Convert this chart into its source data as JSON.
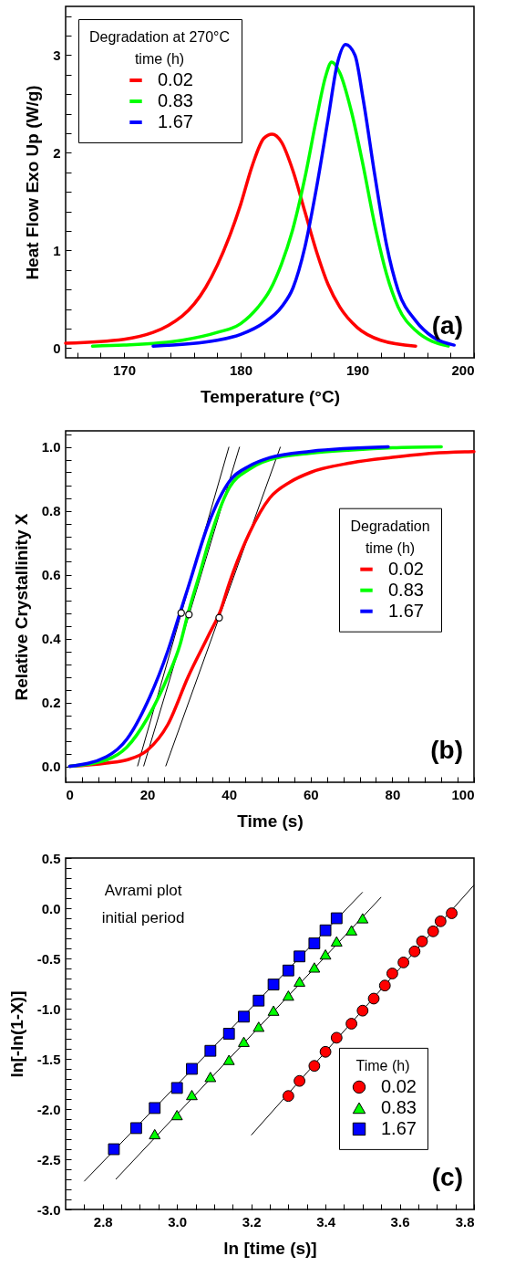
{
  "chart_data": [
    {
      "type": "line",
      "xlabel": "Temperature (°C)",
      "ylabel": "Heat Flow Exo Up (W/g)",
      "legend_title": "Degradation at 270°C\ntime (h)",
      "legend": "top left",
      "annotations": [
        "(a)"
      ],
      "xlim": [
        165,
        200
      ],
      "ylim": [
        -0.1,
        3.5
      ],
      "xticks": [
        {
          "value": 166,
          "label": null
        },
        {
          "value": 168,
          "label": null
        },
        170,
        {
          "value": 172,
          "label": null
        },
        {
          "value": 174,
          "label": null
        },
        {
          "value": 176,
          "label": null
        },
        {
          "value": 178,
          "label": null
        },
        180,
        {
          "value": 182,
          "label": null
        },
        {
          "value": 184,
          "label": null
        },
        {
          "value": 186,
          "label": null
        },
        {
          "value": 188,
          "label": null
        },
        190,
        {
          "value": 192,
          "label": null
        },
        {
          "value": 194,
          "label": null
        },
        {
          "value": 196,
          "label": null
        },
        {
          "value": 198,
          "label": null
        },
        200
      ],
      "yticks": [
        0,
        {
          "value": 0.2,
          "label": null
        },
        {
          "value": 0.4,
          "label": null
        },
        {
          "value": 0.6,
          "label": null
        },
        {
          "value": 0.8,
          "label": null
        },
        1,
        {
          "value": 1.2,
          "label": null
        },
        {
          "value": 1.4,
          "label": null
        },
        {
          "value": 1.6,
          "label": null
        },
        {
          "value": 1.8,
          "label": null
        },
        2,
        {
          "value": 2.2,
          "label": null
        },
        {
          "value": 2.4,
          "label": null
        },
        {
          "value": 2.6,
          "label": null
        },
        {
          "value": 2.8,
          "label": null
        },
        3,
        {
          "value": 3.2,
          "label": null
        },
        {
          "value": 3.4,
          "label": null
        }
      ],
      "series": [
        {
          "name": "0.02",
          "color": "#ff0000",
          "x": [
            165,
            170,
            175,
            177,
            179,
            180,
            181,
            182,
            182.7,
            183.5,
            184.5,
            185.5,
            186.5,
            187.5,
            188.5,
            190,
            192,
            195
          ],
          "values": [
            0.05,
            0.09,
            0.33,
            0.62,
            1.13,
            1.47,
            1.87,
            2.15,
            2.19,
            2.11,
            1.81,
            1.4,
            0.99,
            0.65,
            0.42,
            0.21,
            0.08,
            0.02
          ]
        },
        {
          "name": "0.83",
          "color": "#00ff00",
          "x": [
            167.3,
            170,
            175,
            178,
            180,
            181.5,
            182.5,
            183.5,
            184.5,
            185.5,
            186.5,
            187.3,
            187.8,
            188.5,
            189.5,
            190.5,
            191.5,
            192.5,
            193.5,
            195,
            197.8
          ],
          "values": [
            0.02,
            0.03,
            0.08,
            0.16,
            0.25,
            0.42,
            0.59,
            0.86,
            1.23,
            1.74,
            2.35,
            2.79,
            2.93,
            2.82,
            2.42,
            1.87,
            1.26,
            0.76,
            0.42,
            0.18,
            0.02
          ]
        },
        {
          "name": "1.67",
          "color": "#0000ff",
          "x": [
            172.5,
            178,
            180,
            182,
            183.5,
            184.5,
            185.5,
            186.5,
            187.5,
            188.3,
            189,
            189.8,
            190.5,
            191.5,
            192.5,
            193.5,
            195,
            196.5,
            198.3
          ],
          "values": [
            0.02,
            0.08,
            0.14,
            0.26,
            0.42,
            0.62,
            1.03,
            1.64,
            2.35,
            2.92,
            3.11,
            3.0,
            2.55,
            1.77,
            1.06,
            0.59,
            0.28,
            0.11,
            0.03
          ]
        }
      ]
    },
    {
      "type": "line",
      "xlabel": "Time (s)",
      "ylabel": "Relative Crystallinity X",
      "legend_title": "Degradation\ntime (h)",
      "legend": "right",
      "annotations": [
        "(b)"
      ],
      "xlim": [
        0,
        100
      ],
      "ylim": [
        -0.05,
        1.05
      ],
      "xticks": [
        0,
        {
          "value": 4,
          "label": null
        },
        {
          "value": 8,
          "label": null
        },
        {
          "value": 12,
          "label": null
        },
        {
          "value": 16,
          "label": null
        },
        20,
        {
          "value": 24,
          "label": null
        },
        {
          "value": 28,
          "label": null
        },
        {
          "value": 32,
          "label": null
        },
        {
          "value": 36,
          "label": null
        },
        40,
        {
          "value": 44,
          "label": null
        },
        {
          "value": 48,
          "label": null
        },
        {
          "value": 52,
          "label": null
        },
        {
          "value": 56,
          "label": null
        },
        60,
        {
          "value": 64,
          "label": null
        },
        {
          "value": 68,
          "label": null
        },
        {
          "value": 72,
          "label": null
        },
        {
          "value": 76,
          "label": null
        },
        80,
        {
          "value": 84,
          "label": null
        },
        {
          "value": 88,
          "label": null
        },
        {
          "value": 92,
          "label": null
        },
        {
          "value": 96,
          "label": null
        },
        100
      ],
      "yticks": [
        {
          "value": 0,
          "label": "0.0"
        },
        {
          "value": 0.04,
          "label": null
        },
        {
          "value": 0.08,
          "label": null
        },
        {
          "value": 0.12,
          "label": null
        },
        {
          "value": 0.16,
          "label": null
        },
        0.2,
        {
          "value": 0.24,
          "label": null
        },
        {
          "value": 0.28,
          "label": null
        },
        {
          "value": 0.32,
          "label": null
        },
        {
          "value": 0.36,
          "label": null
        },
        0.4,
        {
          "value": 0.44,
          "label": null
        },
        {
          "value": 0.48,
          "label": null
        },
        {
          "value": 0.52,
          "label": null
        },
        {
          "value": 0.56,
          "label": null
        },
        0.6,
        {
          "value": 0.64,
          "label": null
        },
        {
          "value": 0.68,
          "label": null
        },
        {
          "value": 0.72,
          "label": null
        },
        {
          "value": 0.76,
          "label": null
        },
        0.8,
        {
          "value": 0.84,
          "label": null
        },
        {
          "value": 0.88,
          "label": null
        },
        {
          "value": 0.92,
          "label": null
        },
        {
          "value": 0.96,
          "label": null
        },
        {
          "value": 1,
          "label": "1.0"
        },
        {
          "value": 1.04,
          "label": null
        }
      ],
      "series": [
        {
          "name": "0.02",
          "color": "#ff0000",
          "x": [
            1,
            10,
            15,
            20,
            25,
            30,
            35,
            38,
            40,
            45,
            50,
            55,
            60,
            70,
            80,
            90,
            100
          ],
          "values": [
            0,
            0.01,
            0.02,
            0.05,
            0.13,
            0.28,
            0.41,
            0.49,
            0.57,
            0.73,
            0.84,
            0.89,
            0.92,
            0.95,
            0.967,
            0.98,
            0.985
          ]
        },
        {
          "name": "0.83",
          "color": "#00ff00",
          "x": [
            1,
            10,
            15,
            20,
            25,
            28,
            30,
            33,
            35,
            40,
            45,
            50,
            60,
            70,
            80,
            92
          ],
          "values": [
            0,
            0.02,
            0.06,
            0.15,
            0.28,
            0.38,
            0.48,
            0.61,
            0.7,
            0.87,
            0.93,
            0.96,
            0.98,
            0.99,
            0.997,
            1.0
          ]
        },
        {
          "name": "1.67",
          "color": "#0000ff",
          "x": [
            1,
            10,
            15,
            20,
            25,
            28,
            30,
            35,
            40,
            45,
            50,
            60,
            79
          ],
          "values": [
            0,
            0.03,
            0.085,
            0.2,
            0.36,
            0.48,
            0.56,
            0.76,
            0.89,
            0.94,
            0.966,
            0.986,
            1.0
          ]
        },
        {
          "type": "line",
          "color": "#000000",
          "x": [
            17.6,
            40
          ],
          "values": [
            0,
            1.0
          ]
        },
        {
          "type": "line",
          "color": "#000000",
          "x": [
            19.1,
            42.6
          ],
          "values": [
            0,
            1.0
          ]
        },
        {
          "type": "line",
          "color": "#000000",
          "x": [
            24.5,
            52.6
          ],
          "values": [
            0,
            1.0
          ]
        },
        {
          "type": "scatter",
          "marker": "circle",
          "color": "#ffffff",
          "x": [
            28.3,
            30.2,
            37.6
          ],
          "values": [
            0.48,
            0.475,
            0.465
          ]
        }
      ]
    },
    {
      "type": "scatter",
      "xlabel": "ln [time (s)]",
      "ylabel": "ln[-ln(1-X)]",
      "legend_title": "Time (h)",
      "legend": "bottom right",
      "annotations": [
        "Avrami plot\ninitial period",
        "(c)"
      ],
      "xlim": [
        2.7,
        3.8
      ],
      "ylim": [
        -3.0,
        0.5
      ],
      "xticks": [
        {
          "value": 2.75,
          "label": null
        },
        2.8,
        {
          "value": 2.85,
          "label": null
        },
        {
          "value": 2.9,
          "label": null
        },
        {
          "value": 2.95,
          "label": null
        },
        {
          "value": 3,
          "label": "3.0"
        },
        {
          "value": 3.05,
          "label": null
        },
        {
          "value": 3.1,
          "label": null
        },
        {
          "value": 3.15,
          "label": null
        },
        3.2,
        {
          "value": 3.25,
          "label": null
        },
        {
          "value": 3.3,
          "label": null
        },
        {
          "value": 3.35,
          "label": null
        },
        3.4,
        {
          "value": 3.45,
          "label": null
        },
        {
          "value": 3.5,
          "label": null
        },
        {
          "value": 3.55,
          "label": null
        },
        3.6,
        {
          "value": 3.65,
          "label": null
        },
        {
          "value": 3.7,
          "label": null
        },
        {
          "value": 3.75,
          "label": null
        },
        3.8
      ],
      "yticks": [
        {
          "value": -3,
          "label": "-3.0"
        },
        {
          "value": -2.9,
          "label": null
        },
        {
          "value": -2.8,
          "label": null
        },
        {
          "value": -2.7,
          "label": null
        },
        {
          "value": -2.6,
          "label": null
        },
        -2.5,
        {
          "value": -2.4,
          "label": null
        },
        {
          "value": -2.3,
          "label": null
        },
        {
          "value": -2.2,
          "label": null
        },
        {
          "value": -2.1,
          "label": null
        },
        {
          "value": -2,
          "label": "-2.0"
        },
        {
          "value": -1.9,
          "label": null
        },
        {
          "value": -1.8,
          "label": null
        },
        {
          "value": -1.7,
          "label": null
        },
        {
          "value": -1.6,
          "label": null
        },
        -1.5,
        {
          "value": -1.4,
          "label": null
        },
        {
          "value": -1.3,
          "label": null
        },
        {
          "value": -1.2,
          "label": null
        },
        {
          "value": -1.1,
          "label": null
        },
        {
          "value": -1,
          "label": "-1.0"
        },
        {
          "value": -0.9,
          "label": null
        },
        {
          "value": -0.8,
          "label": null
        },
        {
          "value": -0.7,
          "label": null
        },
        {
          "value": -0.6,
          "label": null
        },
        -0.5,
        {
          "value": -0.4,
          "label": null
        },
        {
          "value": -0.3,
          "label": null
        },
        {
          "value": -0.2,
          "label": null
        },
        {
          "value": -0.1,
          "label": null
        },
        {
          "value": 0,
          "label": "0.0"
        },
        {
          "value": 0.1,
          "label": null
        },
        {
          "value": 0.2,
          "label": null
        },
        {
          "value": 0.3,
          "label": null
        },
        {
          "value": 0.4,
          "label": null
        },
        0.5
      ],
      "series": [
        {
          "name": "0.02",
          "color": "#ff0000",
          "marker": "circle",
          "x": [
            3.3,
            3.33,
            3.37,
            3.4,
            3.43,
            3.47,
            3.5,
            3.53,
            3.56,
            3.58,
            3.61,
            3.64,
            3.66,
            3.69,
            3.71,
            3.74
          ],
          "values": [
            -1.87,
            -1.72,
            -1.57,
            -1.43,
            -1.29,
            -1.15,
            -1.02,
            -0.9,
            -0.77,
            -0.65,
            -0.54,
            -0.43,
            -0.33,
            -0.23,
            -0.13,
            -0.05
          ]
        },
        {
          "name": "0.83",
          "color": "#00ff00",
          "marker": "triangle",
          "x": [
            2.94,
            3.0,
            3.04,
            3.09,
            3.14,
            3.18,
            3.22,
            3.26,
            3.3,
            3.33,
            3.37,
            3.4,
            3.43,
            3.47,
            3.5
          ],
          "values": [
            -2.25,
            -2.06,
            -1.86,
            -1.68,
            -1.51,
            -1.33,
            -1.18,
            -1.02,
            -0.87,
            -0.73,
            -0.59,
            -0.46,
            -0.33,
            -0.22,
            -0.1
          ]
        },
        {
          "name": "1.67",
          "color": "#0000ff",
          "marker": "square",
          "x": [
            2.83,
            2.89,
            2.94,
            3.0,
            3.04,
            3.09,
            3.14,
            3.18,
            3.22,
            3.26,
            3.3,
            3.33,
            3.37,
            3.4,
            3.43
          ],
          "values": [
            -2.4,
            -2.19,
            -1.99,
            -1.79,
            -1.6,
            -1.42,
            -1.25,
            -1.08,
            -0.92,
            -0.76,
            -0.62,
            -0.48,
            -0.35,
            -0.22,
            -0.1
          ]
        },
        {
          "type": "line",
          "color": "#000000",
          "x": [
            2.75,
            3.5
          ],
          "values": [
            -2.72,
            0.16
          ]
        },
        {
          "type": "line",
          "color": "#000000",
          "x": [
            2.835,
            3.55
          ],
          "values": [
            -2.7,
            0.11
          ]
        },
        {
          "type": "line",
          "color": "#000000",
          "x": [
            3.2,
            3.8
          ],
          "values": [
            -2.26,
            0.23
          ]
        }
      ]
    }
  ]
}
